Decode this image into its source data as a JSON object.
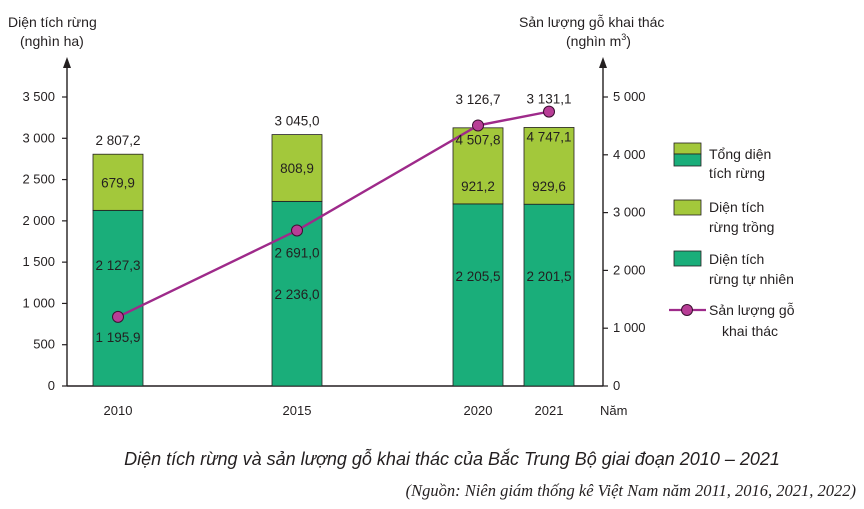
{
  "chart_data": {
    "type": "bar+line",
    "years": [
      "2010",
      "2015",
      "2020",
      "2021"
    ],
    "x_unit_label": "Năm",
    "left_axis": {
      "title_line1": "Diện tích rừng",
      "title_line2": "(nghìn ha)",
      "ylim": [
        0,
        3500
      ],
      "ticks": [
        "0",
        "500",
        "1 000",
        "1 500",
        "2 000",
        "2 500",
        "3 000",
        "3 500"
      ]
    },
    "right_axis": {
      "title_line1": "Sản lượng gỗ khai thác",
      "title_line2": "(nghìn m",
      "title_sup": "3",
      "title_close": ")",
      "ylim": [
        0,
        5000
      ],
      "ticks": [
        "0",
        "1 000",
        "2 000",
        "3 000",
        "4 000",
        "5 000"
      ]
    },
    "series": [
      {
        "name": "Diện tích rừng tự nhiên",
        "values": [
          2127.3,
          2236.0,
          2205.5,
          2201.5
        ],
        "labels": [
          "2 127,3",
          "2 236,0",
          "2 205,5",
          "2 201,5"
        ],
        "color": "#1aae7a"
      },
      {
        "name": "Diện tích rừng trồng",
        "values": [
          679.9,
          808.9,
          921.2,
          929.6
        ],
        "labels": [
          "679,9",
          "808,9",
          "921,2",
          "929,6"
        ],
        "color": "#a3c83b"
      },
      {
        "name": "Tổng diện tích rừng",
        "values": [
          2807.2,
          3045.0,
          3126.7,
          3131.1
        ],
        "labels": [
          "2 807,2",
          "3 045,0",
          "3 126,7",
          "3 131,1"
        ]
      },
      {
        "name": "Sản lượng gỗ khai thác",
        "values": [
          1195.9,
          2691.0,
          4507.8,
          4747.1
        ],
        "labels": [
          "1 195,9",
          "2 691,0",
          "4 507,8",
          "4 747,1"
        ],
        "color": "#9e2a8a",
        "marker_color": "#b83d96"
      }
    ],
    "legend": {
      "placement": "right",
      "items": [
        {
          "line1": "Tổng diện",
          "line2": "tích rừng"
        },
        {
          "line1": "Diện tích",
          "line2": "rừng trồng"
        },
        {
          "line1": "Diện tích",
          "line2": "rừng tự nhiên"
        },
        {
          "line1": "Sản lượng gỗ",
          "line2": "khai thác"
        }
      ]
    },
    "caption": "Diện tích rừng và sản lượng gỗ khai thác của Bắc Trung Bộ giai đoạn 2010 – 2021",
    "source": "(Nguồn: Niên giám thống kê Việt Nam năm 2011, 2016, 2021, 2022)"
  }
}
